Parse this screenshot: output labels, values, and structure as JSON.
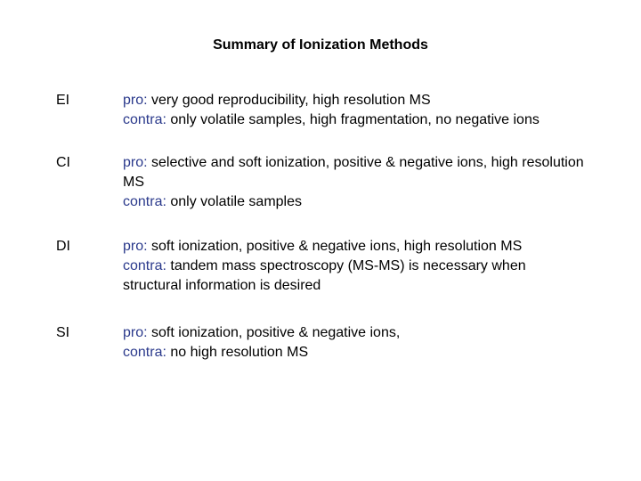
{
  "title": "Summary of Ionization Methods",
  "methods": [
    {
      "abbr": "EI",
      "pro_label": "pro:",
      "pro": " very good reproducibility, high resolution MS",
      "contra_label": "contra:",
      "contra": " only volatile samples, high fragmentation, no negative ions"
    },
    {
      "abbr": "CI",
      "pro_label": "pro:",
      "pro": " selective and soft ionization, positive & negative ions, high resolution MS",
      "contra_label": "contra:",
      "contra": " only volatile samples"
    },
    {
      "abbr": "DI",
      "pro_label": "pro:",
      "pro": " soft ionization, positive & negative ions, high resolution MS",
      "contra_label": "contra:",
      "contra": " tandem mass spectroscopy (MS-MS) is necessary when structural information is desired"
    },
    {
      "abbr": "SI",
      "pro_label": "pro:",
      "pro": " soft ionization, positive & negative ions,",
      "contra_label": "contra:",
      "contra": " no high resolution MS"
    }
  ],
  "colors": {
    "keyword": "#2b3a8c",
    "text": "#000000",
    "background": "#ffffff"
  }
}
